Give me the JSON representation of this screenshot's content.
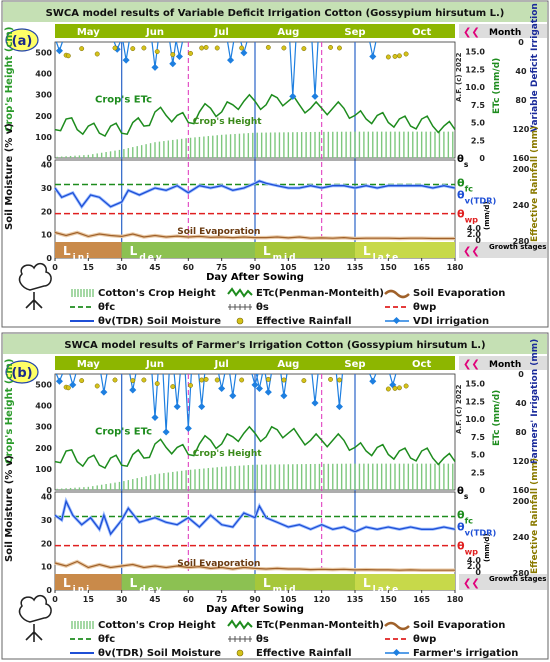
{
  "colors": {
    "header_band": "#c5e0b4",
    "month_bar": "#8db600",
    "month_text": "#ffffff",
    "stage_ini": "#c98a4a",
    "stage_dev": "#8cc152",
    "stage_mid": "#a6c73a",
    "stage_late": "#c7d94a",
    "etc": "#1e8c1e",
    "height": "#7ec87e",
    "soil_evap": "#a0612a",
    "theta_v": "#1e4fd6",
    "theta_fc": "#1e8c1e",
    "theta_wp": "#e02020",
    "rain": "#d4c21a",
    "irrigation": "#1e7fe0",
    "vline": "#3a6fcc",
    "stage_line": "#e040c0",
    "arrow": "#e0007a"
  },
  "panels": [
    {
      "tag": "(a)",
      "title": "SWCA model results of Variable Deficit Irrigation Cotton (Gossypium hirsutum L.)",
      "months": [
        "May",
        "Jun",
        "Jul",
        "Aug",
        "Sep",
        "Oct"
      ],
      "month_label": "Month",
      "stages": [
        {
          "text": "L",
          "sub": "ini"
        },
        {
          "text": "L",
          "sub": "dev"
        },
        {
          "text": "L",
          "sub": "mid"
        },
        {
          "text": "L",
          "sub": "late"
        }
      ],
      "stages_label": "Growth stages",
      "left_axis_label": "Crop's Height (cm)",
      "soil_axis_label": "Soil Moisture (% v)",
      "etc_axis_label": "ETc (mm/d)",
      "right_irr_label": "Variable Deficit Irrigation (mm)",
      "right_rain_label": "Effective Rainfall (mm)",
      "ev_unit": "(mm/d)",
      "af_label": "A.F. (c) 2022",
      "ann_etc": "Crop's ETc",
      "ann_height": "Crop's Height",
      "ann_evap": "Soil Evaporation",
      "theta_s": "θs",
      "theta_fc": "θfc",
      "theta_v": "θv(TDR)",
      "theta_wp": "θwp",
      "xlabel": "Day After Sowing",
      "legend": [
        "Cotton's Crop Height",
        "ETc(Penman-Monteith)",
        "Soil Evaporation",
        "θfc",
        "θs",
        "θwp",
        "θv(TDR) Soil Moisture",
        "Effective Rainfall",
        "VDI irrigation"
      ]
    },
    {
      "tag": "(b)",
      "title": "SWCA model results of Farmer's Irrigation Cotton (Gossypium hirsutum L.)",
      "months": [
        "May",
        "Jun",
        "Jul",
        "Aug",
        "Sep",
        "Oct"
      ],
      "month_label": "Month",
      "stages": [
        {
          "text": "L",
          "sub": "ini"
        },
        {
          "text": "L",
          "sub": "dev"
        },
        {
          "text": "L",
          "sub": "mid"
        },
        {
          "text": "L",
          "sub": "late"
        }
      ],
      "stages_label": "Growth stages",
      "left_axis_label": "Crop's Height (cm)",
      "soil_axis_label": "Soil Moisture (% v)",
      "etc_axis_label": "ETc (mm/d)",
      "right_irr_label": "Farmers' Irrigation (mm)",
      "right_rain_label": "Effective Rainfall (mm)",
      "ev_unit": "(mm/d)",
      "af_label": "A.F. (c) 2022",
      "ann_etc": "Crop's ETc",
      "ann_height": "Crop's Height",
      "ann_evap": "Soil Evaporation",
      "theta_s": "θs",
      "theta_fc": "θfc",
      "theta_v": "θv(TDR)",
      "theta_wp": "θwp",
      "xlabel": "Day After Sowing",
      "legend": [
        "Cotton's Crop Height",
        "ETc(Penman-Monteith)",
        "Soil Evaporation",
        "θfc",
        "θs",
        "θwp",
        "θv(TDR) Soil Moisture",
        "Effective Rainfall",
        "Farmer's irrigation"
      ]
    }
  ],
  "chart_data": [
    {
      "type": "line",
      "x": {
        "label": "Day After Sowing",
        "lim": [
          0,
          180
        ],
        "ticks": [
          0,
          15,
          30,
          45,
          60,
          75,
          90,
          105,
          120,
          135,
          150,
          165,
          180
        ]
      },
      "axes": {
        "height_cm": {
          "lim": [
            0,
            500
          ],
          "ticks": [
            0,
            100,
            200,
            300,
            400,
            500
          ]
        },
        "soil_moisture_pct": {
          "lim": [
            0,
            40
          ],
          "ticks": [
            0,
            10,
            20,
            30,
            40
          ]
        },
        "etc_mm_d": {
          "ticks": [
            0,
            2.5,
            5.0,
            7.5,
            10.0,
            12.5,
            15.0
          ]
        },
        "irrigation_mm": {
          "ticks": [
            0,
            40,
            80,
            120,
            160
          ]
        },
        "effective_rainfall_mm": {
          "ticks": [
            200,
            240,
            280
          ]
        },
        "soil_evap_mm_d": {
          "ticks": [
            0,
            2.0,
            4.0
          ]
        }
      },
      "stage_boundaries": [
        30,
        60,
        90,
        120,
        135
      ],
      "theta_fc": 31.5,
      "theta_wp": 19.0,
      "series": [
        {
          "name": "ETc(Penman-Monteith)",
          "x": [
            0,
            5,
            10,
            15,
            20,
            25,
            30,
            35,
            40,
            45,
            50,
            55,
            60,
            65,
            70,
            75,
            80,
            85,
            90,
            95,
            100,
            105,
            110,
            115,
            120,
            125,
            130,
            135,
            140,
            145,
            150,
            155,
            160,
            165,
            170,
            175,
            180
          ],
          "values": [
            4.0,
            5.5,
            4.0,
            4.5,
            3.5,
            4.5,
            3.5,
            5.0,
            4.5,
            6.5,
            6.0,
            6.0,
            5.0,
            6.5,
            7.0,
            6.5,
            7.5,
            8.0,
            8.0,
            7.5,
            8.5,
            8.0,
            7.5,
            7.0,
            7.0,
            7.0,
            7.0,
            6.0,
            5.5,
            6.0,
            5.0,
            5.5,
            4.5,
            5.5,
            4.5,
            4.5,
            4.0
          ]
        },
        {
          "name": "Cotton's Crop Height",
          "x": [
            0,
            15,
            30,
            45,
            60,
            75,
            90,
            105,
            120,
            135,
            150,
            165,
            180
          ],
          "values": [
            5,
            15,
            40,
            75,
            95,
            110,
            120,
            122,
            124,
            125,
            125,
            125,
            125
          ]
        },
        {
          "name": "θv(TDR) Soil Moisture",
          "x": [
            0,
            3,
            8,
            12,
            16,
            20,
            25,
            30,
            33,
            38,
            45,
            50,
            55,
            60,
            65,
            70,
            75,
            80,
            85,
            90,
            92,
            95,
            100,
            105,
            110,
            115,
            120,
            125,
            130,
            135,
            140,
            145,
            150,
            155,
            160,
            165,
            170,
            175,
            180
          ],
          "values": [
            30,
            26,
            28,
            22,
            27,
            26,
            22,
            24,
            29,
            27,
            30,
            29,
            31,
            28,
            31,
            30,
            31,
            29,
            30,
            32,
            33,
            32,
            31,
            30,
            30,
            31,
            30,
            31,
            31,
            30,
            31,
            30,
            31,
            31,
            31,
            31,
            30,
            31,
            30
          ]
        },
        {
          "name": "Soil Evaporation",
          "x": [
            0,
            5,
            10,
            15,
            20,
            25,
            30,
            35,
            40,
            45,
            50,
            55,
            60,
            65,
            70,
            75,
            80,
            85,
            90,
            95,
            100,
            105,
            110,
            115,
            120,
            125,
            130,
            135,
            140,
            145,
            150,
            155,
            160,
            165,
            170,
            175,
            180
          ],
          "values": [
            2.5,
            1.5,
            2.5,
            1.2,
            2.0,
            1.5,
            1.2,
            2.0,
            1.0,
            1.5,
            1.0,
            1.3,
            1.0,
            1.2,
            0.9,
            1.0,
            0.8,
            1.0,
            0.8,
            0.8,
            1.0,
            0.7,
            1.0,
            0.6,
            0.7,
            0.6,
            0.8,
            0.5,
            0.6,
            0.6,
            0.6,
            0.5,
            0.6,
            0.6,
            0.5,
            0.5,
            0.5
          ]
        },
        {
          "name": "VDI irrigation",
          "x": [
            2,
            28,
            32,
            45,
            53,
            56,
            79,
            85,
            107,
            117,
            143
          ],
          "values": [
            12,
            10,
            25,
            35,
            30,
            20,
            25,
            15,
            75,
            75,
            20
          ]
        },
        {
          "name": "Effective Rainfall",
          "x": [
            5,
            6,
            12,
            19,
            27,
            35,
            40,
            46,
            53,
            61,
            66,
            68,
            73,
            84,
            96,
            103,
            112,
            124,
            128,
            150,
            153,
            155,
            158
          ],
          "values": [
            22,
            23,
            11,
            20,
            10,
            11,
            10,
            16,
            21,
            19,
            10,
            9,
            10,
            10,
            9,
            10,
            11,
            9,
            10,
            25,
            24,
            23,
            20
          ]
        }
      ]
    },
    {
      "type": "line",
      "x": {
        "label": "Day After Sowing",
        "lim": [
          0,
          180
        ],
        "ticks": [
          0,
          15,
          30,
          45,
          60,
          75,
          90,
          105,
          120,
          135,
          150,
          165,
          180
        ]
      },
      "axes": {
        "height_cm": {
          "lim": [
            0,
            500
          ],
          "ticks": [
            0,
            100,
            200,
            300,
            400,
            500
          ]
        },
        "soil_moisture_pct": {
          "lim": [
            0,
            40
          ],
          "ticks": [
            0,
            10,
            20,
            30,
            40
          ]
        },
        "etc_mm_d": {
          "ticks": [
            0,
            2.5,
            5.0,
            7.5,
            10.0,
            12.5,
            15.0
          ]
        },
        "irrigation_mm": {
          "ticks": [
            0,
            40,
            80,
            120,
            160
          ]
        },
        "effective_rainfall_mm": {
          "ticks": [
            200,
            240,
            280
          ]
        },
        "soil_evap_mm_d": {
          "ticks": [
            0,
            2.0,
            4.0
          ]
        }
      },
      "stage_boundaries": [
        30,
        60,
        90,
        120,
        135
      ],
      "theta_fc": 31.5,
      "theta_wp": 19.0,
      "series": [
        {
          "name": "ETc(Penman-Monteith)",
          "x": [
            0,
            5,
            10,
            15,
            20,
            25,
            30,
            35,
            40,
            45,
            50,
            55,
            60,
            65,
            70,
            75,
            80,
            85,
            90,
            95,
            100,
            105,
            110,
            115,
            120,
            125,
            130,
            135,
            140,
            145,
            150,
            155,
            160,
            165,
            170,
            175,
            180
          ],
          "values": [
            4.0,
            5.5,
            4.0,
            4.5,
            3.5,
            4.5,
            3.5,
            5.0,
            4.5,
            6.5,
            6.0,
            6.0,
            5.0,
            6.5,
            7.0,
            6.5,
            7.5,
            8.0,
            8.0,
            7.5,
            8.5,
            8.0,
            7.5,
            7.0,
            7.0,
            7.0,
            7.0,
            6.0,
            5.5,
            6.0,
            5.0,
            5.5,
            4.5,
            5.5,
            4.5,
            4.5,
            4.0
          ]
        },
        {
          "name": "Cotton's Crop Height",
          "x": [
            0,
            15,
            30,
            45,
            60,
            75,
            90,
            105,
            120,
            135,
            150,
            165,
            180
          ],
          "values": [
            5,
            15,
            40,
            75,
            95,
            110,
            120,
            122,
            124,
            125,
            125,
            125,
            125
          ]
        },
        {
          "name": "θv(TDR) Soil Moisture",
          "x": [
            0,
            3,
            5,
            8,
            12,
            16,
            20,
            22,
            25,
            30,
            33,
            38,
            45,
            50,
            55,
            60,
            65,
            70,
            75,
            80,
            85,
            90,
            92,
            95,
            100,
            105,
            110,
            115,
            120,
            125,
            130,
            135,
            140,
            145,
            150,
            155,
            160,
            165,
            170,
            175,
            180
          ],
          "values": [
            32,
            30,
            38,
            32,
            28,
            31,
            26,
            32,
            24,
            30,
            35,
            29,
            31,
            29,
            28,
            31,
            27,
            32,
            28,
            27,
            33,
            31,
            36,
            31,
            29,
            27,
            28,
            26,
            28,
            26,
            27,
            25,
            27,
            26,
            27,
            26,
            27,
            26,
            26,
            27,
            26
          ]
        },
        {
          "name": "Soil Evaporation",
          "x": [
            0,
            5,
            10,
            15,
            20,
            25,
            30,
            35,
            40,
            45,
            50,
            55,
            60,
            65,
            70,
            75,
            80,
            85,
            90,
            95,
            100,
            105,
            110,
            115,
            120,
            125,
            130,
            135,
            140,
            145,
            150,
            155,
            160,
            165,
            170,
            175,
            180
          ],
          "values": [
            3.0,
            2.0,
            3.5,
            1.5,
            2.5,
            1.5,
            2.0,
            2.5,
            1.5,
            2.0,
            1.5,
            2.0,
            1.5,
            1.8,
            1.2,
            1.5,
            1.0,
            1.5,
            1.2,
            1.0,
            1.2,
            1.0,
            1.0,
            0.8,
            0.9,
            0.8,
            0.9,
            0.7,
            0.8,
            0.7,
            0.7,
            0.6,
            0.7,
            0.6,
            0.6,
            0.6,
            0.6
          ]
        },
        {
          "name": "Farmer's irrigation",
          "x": [
            2,
            8,
            22,
            35,
            45,
            50,
            55,
            60,
            66,
            75,
            80,
            90,
            92,
            96,
            103,
            117,
            128,
            143,
            152
          ],
          "values": [
            10,
            15,
            25,
            22,
            60,
            80,
            45,
            75,
            45,
            20,
            30,
            15,
            20,
            25,
            30,
            40,
            45,
            10,
            15
          ]
        },
        {
          "name": "Effective Rainfall",
          "x": [
            5,
            6,
            12,
            19,
            27,
            35,
            40,
            46,
            53,
            61,
            66,
            68,
            73,
            84,
            96,
            103,
            112,
            124,
            128,
            150,
            153,
            155,
            158
          ],
          "values": [
            22,
            23,
            11,
            20,
            10,
            11,
            10,
            16,
            21,
            19,
            10,
            9,
            10,
            10,
            9,
            10,
            11,
            9,
            10,
            25,
            24,
            23,
            20
          ]
        }
      ]
    }
  ]
}
